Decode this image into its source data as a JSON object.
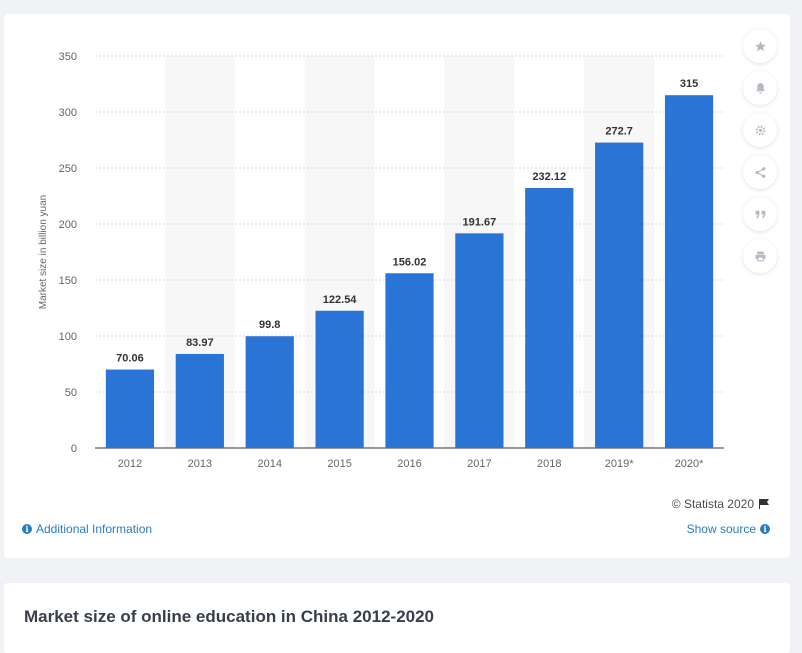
{
  "chart_data": {
    "type": "bar",
    "categories": [
      "2012",
      "2013",
      "2014",
      "2015",
      "2016",
      "2017",
      "2018",
      "2019*",
      "2020*"
    ],
    "values": [
      70.06,
      83.97,
      99.8,
      122.54,
      156.02,
      191.67,
      232.12,
      272.7,
      315
    ],
    "data_labels": [
      "70.06",
      "83.97",
      "99.8",
      "122.54",
      "156.02",
      "191.67",
      "232.12",
      "272.7",
      "315"
    ],
    "ylabel": "Market size in billion yuan",
    "ylim": [
      0,
      350
    ],
    "yticks": [
      0,
      50,
      100,
      150,
      200,
      250,
      300,
      350
    ],
    "bar_color": "#2a74d6",
    "grid": true
  },
  "footer": {
    "additional_info": "Additional Information",
    "show_source": "Show source",
    "credit": "© Statista 2020"
  },
  "tools": [
    "star-icon",
    "bell-icon",
    "gear-icon",
    "share-icon",
    "quote-icon",
    "print-icon"
  ],
  "title": "Market size of online education in China 2012-2020"
}
